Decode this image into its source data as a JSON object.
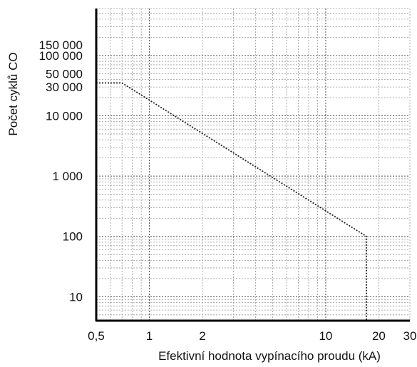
{
  "chart_data": {
    "type": "line",
    "title": "",
    "xlabel": "Efektivní hodnota vypínacího proudu (kA)",
    "ylabel": "Počet cyklů CO",
    "x_scale": "log",
    "y_scale": "log",
    "xlim": [
      0.5,
      30
    ],
    "ylim": [
      4,
      600000
    ],
    "grid": true,
    "x_tick_labels": [
      {
        "value": 0.5,
        "label": "0,5"
      },
      {
        "value": 1,
        "label": "1"
      },
      {
        "value": 2,
        "label": "2"
      },
      {
        "value": 10,
        "label": "10"
      },
      {
        "value": 20,
        "label": "20"
      },
      {
        "value": 30,
        "label": "30"
      }
    ],
    "y_tick_labels": [
      {
        "value": 10,
        "label": "10"
      },
      {
        "value": 100,
        "label": "100"
      },
      {
        "value": 1000,
        "label": "1 000"
      },
      {
        "value": 10000,
        "label": "10 000"
      },
      {
        "value": 30000,
        "label": "30 000"
      },
      {
        "value": 50000,
        "label": "50 000"
      },
      {
        "value": 100000,
        "label": "100 000"
      },
      {
        "value": 150000,
        "label": "150 000"
      }
    ],
    "series": [
      {
        "color": "#222222",
        "style": "dotted",
        "x": [
          0.5,
          0.7,
          17,
          17
        ],
        "y": [
          35000,
          35000,
          100,
          4
        ]
      }
    ]
  }
}
